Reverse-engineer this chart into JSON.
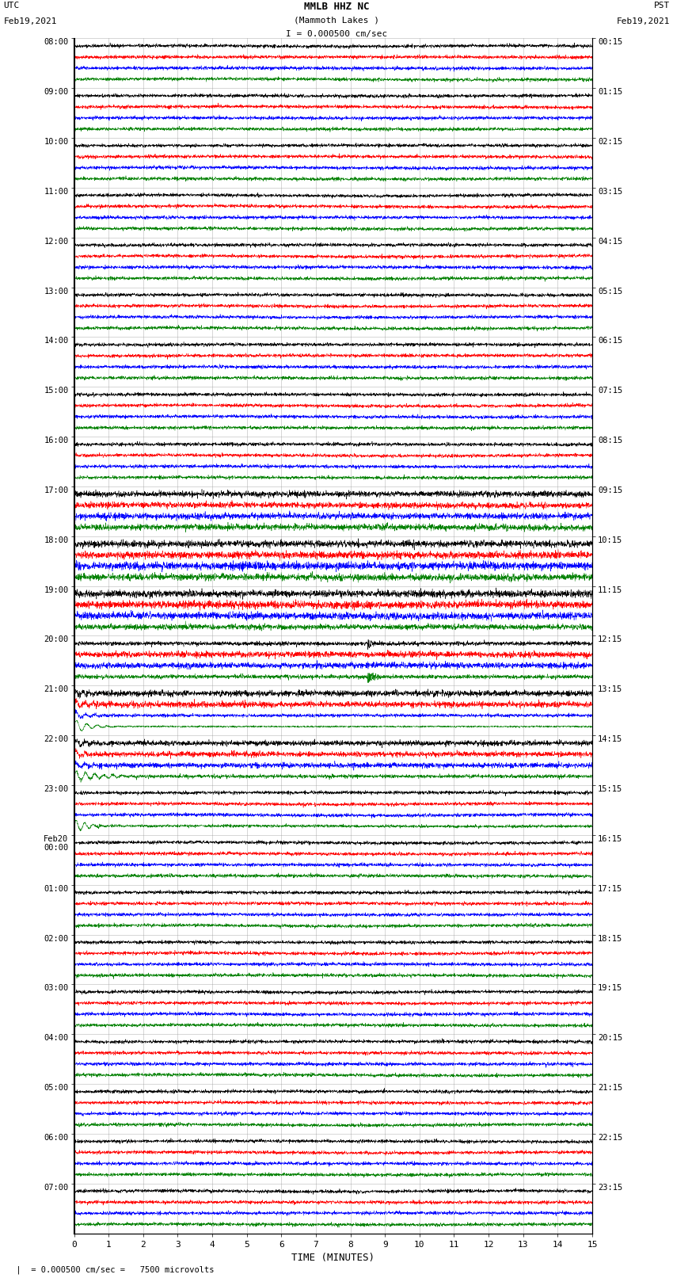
{
  "title_line1": "MMLB HHZ NC",
  "title_line2": "(Mammoth Lakes )",
  "title_line3": "I = 0.000500 cm/sec",
  "label_left_top": "UTC",
  "label_left_date": "Feb19,2021",
  "label_right_top": "PST",
  "label_right_date": "Feb19,2021",
  "xlabel": "TIME (MINUTES)",
  "footnote": "  = 0.000500 cm/sec =   7500 microvolts",
  "utc_times": [
    "08:00",
    "09:00",
    "10:00",
    "11:00",
    "12:00",
    "13:00",
    "14:00",
    "15:00",
    "16:00",
    "17:00",
    "18:00",
    "19:00",
    "20:00",
    "21:00",
    "22:00",
    "23:00",
    "Feb20\n00:00",
    "01:00",
    "02:00",
    "03:00",
    "04:00",
    "05:00",
    "06:00",
    "07:00"
  ],
  "pst_times": [
    "00:15",
    "01:15",
    "02:15",
    "03:15",
    "04:15",
    "05:15",
    "06:15",
    "07:15",
    "08:15",
    "09:15",
    "10:15",
    "11:15",
    "12:15",
    "13:15",
    "14:15",
    "15:15",
    "16:15",
    "17:15",
    "18:15",
    "19:15",
    "20:15",
    "21:15",
    "22:15",
    "23:15"
  ],
  "n_rows": 24,
  "traces_per_row": 4,
  "row_colors": [
    "black",
    "red",
    "blue",
    "green"
  ],
  "background_color": "white",
  "grid_color": "#999999",
  "fig_width": 8.5,
  "fig_height": 16.13,
  "dpi": 100,
  "xmin": 0,
  "xmax": 15,
  "xticks": [
    0,
    1,
    2,
    3,
    4,
    5,
    6,
    7,
    8,
    9,
    10,
    11,
    12,
    13,
    14,
    15
  ],
  "seed": 42,
  "noise_base": 0.04,
  "trace_amplitude": 0.12
}
